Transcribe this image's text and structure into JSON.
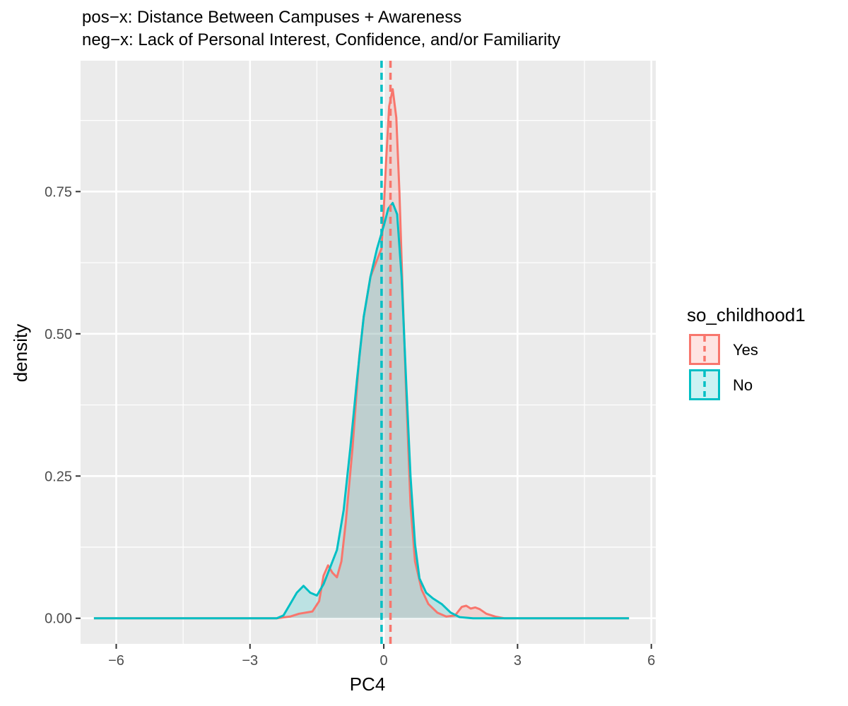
{
  "chart_data": {
    "type": "area",
    "title_lines": [
      "pos−x: Distance Between Campuses + Awareness",
      "neg−x: Lack of Personal Interest, Confidence, and/or Familiarity"
    ],
    "xlabel": "PC4",
    "ylabel": "density",
    "xlim": [
      -6.8,
      6.1
    ],
    "ylim": [
      -0.045,
      0.98
    ],
    "x_ticks": [
      -6,
      -3,
      0,
      3,
      6
    ],
    "x_tick_labels": [
      "−6",
      "−3",
      "0",
      "3",
      "6"
    ],
    "y_ticks": [
      0,
      0.25,
      0.5,
      0.75
    ],
    "y_tick_labels": [
      "0.00",
      "0.25",
      "0.50",
      "0.75"
    ],
    "background": "#EBEBEB",
    "grid": true,
    "legend": {
      "title": "so_childhood1",
      "position": "right",
      "entries": [
        "Yes",
        "No"
      ]
    },
    "series": [
      {
        "name": "Yes",
        "color": "#F8766D",
        "fill_opacity": 0.2,
        "mean": 0.15,
        "points": [
          [
            -6.5,
            0
          ],
          [
            -3.0,
            0
          ],
          [
            -2.4,
            0
          ],
          [
            -2.1,
            0.003
          ],
          [
            -1.9,
            0.008
          ],
          [
            -1.6,
            0.012
          ],
          [
            -1.45,
            0.03
          ],
          [
            -1.35,
            0.075
          ],
          [
            -1.25,
            0.093
          ],
          [
            -1.15,
            0.08
          ],
          [
            -1.05,
            0.072
          ],
          [
            -0.95,
            0.1
          ],
          [
            -0.85,
            0.17
          ],
          [
            -0.7,
            0.3
          ],
          [
            -0.55,
            0.46
          ],
          [
            -0.45,
            0.53
          ],
          [
            -0.3,
            0.6
          ],
          [
            -0.15,
            0.63
          ],
          [
            -0.05,
            0.65
          ],
          [
            0.0,
            0.72
          ],
          [
            0.05,
            0.8
          ],
          [
            0.12,
            0.9
          ],
          [
            0.2,
            0.93
          ],
          [
            0.28,
            0.88
          ],
          [
            0.35,
            0.75
          ],
          [
            0.42,
            0.58
          ],
          [
            0.5,
            0.4
          ],
          [
            0.6,
            0.2
          ],
          [
            0.7,
            0.1
          ],
          [
            0.85,
            0.05
          ],
          [
            1.0,
            0.025
          ],
          [
            1.2,
            0.01
          ],
          [
            1.4,
            0.003
          ],
          [
            1.6,
            0.005
          ],
          [
            1.75,
            0.02
          ],
          [
            1.85,
            0.022
          ],
          [
            1.95,
            0.017
          ],
          [
            2.05,
            0.019
          ],
          [
            2.15,
            0.016
          ],
          [
            2.3,
            0.008
          ],
          [
            2.5,
            0.003
          ],
          [
            2.7,
            0.0
          ],
          [
            5.5,
            0
          ]
        ]
      },
      {
        "name": "No",
        "color": "#00BFC4",
        "fill_opacity": 0.2,
        "mean": -0.05,
        "points": [
          [
            -6.5,
            0
          ],
          [
            -3.0,
            0
          ],
          [
            -2.4,
            0
          ],
          [
            -2.25,
            0.005
          ],
          [
            -2.1,
            0.025
          ],
          [
            -1.95,
            0.045
          ],
          [
            -1.8,
            0.057
          ],
          [
            -1.65,
            0.045
          ],
          [
            -1.5,
            0.04
          ],
          [
            -1.35,
            0.06
          ],
          [
            -1.2,
            0.09
          ],
          [
            -1.05,
            0.12
          ],
          [
            -0.9,
            0.19
          ],
          [
            -0.75,
            0.3
          ],
          [
            -0.6,
            0.42
          ],
          [
            -0.45,
            0.53
          ],
          [
            -0.3,
            0.6
          ],
          [
            -0.15,
            0.65
          ],
          [
            0.0,
            0.69
          ],
          [
            0.1,
            0.72
          ],
          [
            0.2,
            0.73
          ],
          [
            0.3,
            0.71
          ],
          [
            0.4,
            0.6
          ],
          [
            0.5,
            0.42
          ],
          [
            0.6,
            0.25
          ],
          [
            0.7,
            0.13
          ],
          [
            0.8,
            0.07
          ],
          [
            0.95,
            0.045
          ],
          [
            1.1,
            0.035
          ],
          [
            1.3,
            0.025
          ],
          [
            1.5,
            0.01
          ],
          [
            1.7,
            0.002
          ],
          [
            2.0,
            0
          ],
          [
            5.5,
            0
          ]
        ]
      }
    ]
  }
}
